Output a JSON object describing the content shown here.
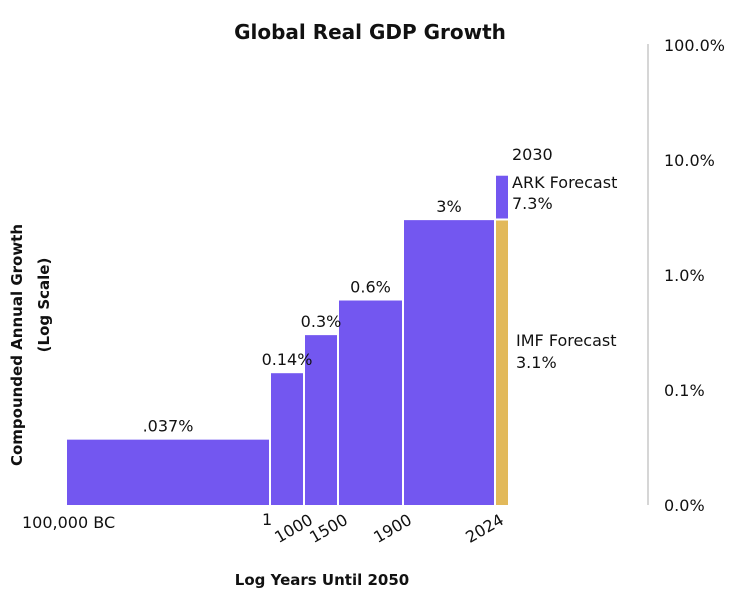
{
  "chart_data": {
    "type": "bar",
    "title": "Global Real GDP Growth",
    "xlabel": "Log Years Until 2050",
    "ylabel_line1": "Compounded Annual Growth",
    "ylabel_line2": "(Log Scale)",
    "y_scale": "log",
    "grid": false,
    "y_ticks": [
      "100.0%",
      "10.0%",
      "1.0%",
      "0.1%",
      "0.0%"
    ],
    "y_tick_values": [
      100,
      10,
      1,
      0.1,
      0.01
    ],
    "x_ticks": [
      "100,000 BC",
      "1",
      "1000",
      "1500",
      "1900",
      "2024"
    ],
    "series": [
      {
        "bars": [
          {
            "label": ".037%",
            "value": 0.037,
            "start": "100,000 BC",
            "end": "1"
          },
          {
            "label": "0.14%",
            "value": 0.14,
            "start": "1",
            "end": "1000"
          },
          {
            "label": "0.3%",
            "value": 0.3,
            "start": "1000",
            "end": "1500"
          },
          {
            "label": "0.6%",
            "value": 0.6,
            "start": "1500",
            "end": "1900"
          },
          {
            "label": "3%",
            "value": 3,
            "start": "1900",
            "end": "2024"
          }
        ],
        "color": "#7357f0"
      }
    ],
    "forecasts": {
      "ark": {
        "year": "2030",
        "name": "ARK Forecast",
        "label": "7.3%",
        "value": 7.3,
        "color": "#7357f0"
      },
      "imf": {
        "name": "IMF Forecast",
        "label": "3.1%",
        "value": 3.1,
        "color": "#e2b95a"
      }
    },
    "axis_color": "#c8c8c8"
  }
}
